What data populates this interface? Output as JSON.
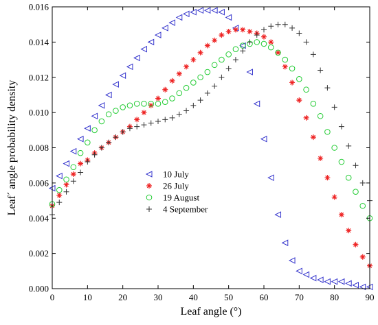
{
  "chart_data": {
    "type": "scatter",
    "title": "",
    "xlabel": "Leaf angle (°)",
    "ylabel": "Leaf´ angle probability density",
    "xlim": [
      0,
      90
    ],
    "ylim": [
      0,
      0.016
    ],
    "x_ticks": [
      "0",
      "10",
      "20",
      "30",
      "40",
      "50",
      "60",
      "70",
      "80",
      "90"
    ],
    "y_ticks": [
      "0.000",
      "0.002",
      "0.004",
      "0.006",
      "0.008",
      "0.010",
      "0.012",
      "0.014",
      "0.016"
    ],
    "x_tick_values": [
      0,
      10,
      20,
      30,
      40,
      50,
      60,
      70,
      80,
      90
    ],
    "y_tick_values": [
      0,
      0.002,
      0.004,
      0.006,
      0.008,
      0.01,
      0.012,
      0.014,
      0.016
    ],
    "grid": false,
    "legend_position": "center-left",
    "series": [
      {
        "name": "10 July",
        "marker": "triangle-left",
        "color": "#3333cc",
        "points": [
          [
            0,
            0.0057
          ],
          [
            2,
            0.0064
          ],
          [
            4,
            0.0071
          ],
          [
            6,
            0.0078
          ],
          [
            8,
            0.0085
          ],
          [
            10,
            0.0091
          ],
          [
            12,
            0.0098
          ],
          [
            14,
            0.0104
          ],
          [
            16,
            0.011
          ],
          [
            18,
            0.0116
          ],
          [
            20,
            0.0121
          ],
          [
            22,
            0.0126
          ],
          [
            24,
            0.0131
          ],
          [
            26,
            0.0136
          ],
          [
            28,
            0.014
          ],
          [
            30,
            0.0144
          ],
          [
            32,
            0.0148
          ],
          [
            34,
            0.0151
          ],
          [
            36,
            0.0154
          ],
          [
            38,
            0.0156
          ],
          [
            40,
            0.0157
          ],
          [
            42,
            0.0158
          ],
          [
            44,
            0.0158
          ],
          [
            46,
            0.0158
          ],
          [
            48,
            0.0157
          ],
          [
            50,
            0.0154
          ],
          [
            52,
            0.0148
          ],
          [
            54,
            0.0138
          ],
          [
            56,
            0.0123
          ],
          [
            58,
            0.0105
          ],
          [
            60,
            0.0085
          ],
          [
            62,
            0.0063
          ],
          [
            64,
            0.0042
          ],
          [
            66,
            0.0026
          ],
          [
            68,
            0.0016
          ],
          [
            70,
            0.001
          ],
          [
            72,
            0.0008
          ],
          [
            74,
            0.0006
          ],
          [
            76,
            0.0005
          ],
          [
            78,
            0.0004
          ],
          [
            80,
            0.0004
          ],
          [
            82,
            0.0004
          ],
          [
            84,
            0.0003
          ],
          [
            86,
            0.0002
          ],
          [
            88,
            0.0001
          ],
          [
            90,
            0.0001
          ]
        ]
      },
      {
        "name": "26 July",
        "marker": "asterisk",
        "color": "#ee2222",
        "points": [
          [
            0,
            0.0047
          ],
          [
            2,
            0.0053
          ],
          [
            4,
            0.0059
          ],
          [
            6,
            0.0065
          ],
          [
            8,
            0.0071
          ],
          [
            10,
            0.0073
          ],
          [
            12,
            0.0077
          ],
          [
            14,
            0.008
          ],
          [
            16,
            0.0083
          ],
          [
            18,
            0.0086
          ],
          [
            20,
            0.0089
          ],
          [
            22,
            0.0092
          ],
          [
            24,
            0.0096
          ],
          [
            26,
            0.01
          ],
          [
            28,
            0.0104
          ],
          [
            30,
            0.0108
          ],
          [
            32,
            0.0113
          ],
          [
            34,
            0.0118
          ],
          [
            36,
            0.0122
          ],
          [
            38,
            0.0126
          ],
          [
            40,
            0.013
          ],
          [
            42,
            0.0134
          ],
          [
            44,
            0.0138
          ],
          [
            46,
            0.0141
          ],
          [
            48,
            0.0144
          ],
          [
            50,
            0.0146
          ],
          [
            52,
            0.0147
          ],
          [
            54,
            0.0147
          ],
          [
            56,
            0.0146
          ],
          [
            58,
            0.0145
          ],
          [
            60,
            0.0143
          ],
          [
            62,
            0.014
          ],
          [
            64,
            0.0134
          ],
          [
            66,
            0.0126
          ],
          [
            68,
            0.0117
          ],
          [
            70,
            0.0107
          ],
          [
            72,
            0.0097
          ],
          [
            74,
            0.0086
          ],
          [
            76,
            0.0074
          ],
          [
            78,
            0.0063
          ],
          [
            80,
            0.0052
          ],
          [
            82,
            0.0042
          ],
          [
            84,
            0.0033
          ],
          [
            86,
            0.0025
          ],
          [
            88,
            0.0018
          ],
          [
            90,
            0.0013
          ]
        ]
      },
      {
        "name": "19 August",
        "marker": "circle",
        "color": "#22cc33",
        "points": [
          [
            0,
            0.0048
          ],
          [
            2,
            0.0056
          ],
          [
            4,
            0.0062
          ],
          [
            6,
            0.0069
          ],
          [
            8,
            0.0077
          ],
          [
            10,
            0.0083
          ],
          [
            12,
            0.009
          ],
          [
            14,
            0.0095
          ],
          [
            16,
            0.0099
          ],
          [
            18,
            0.0101
          ],
          [
            20,
            0.0103
          ],
          [
            22,
            0.0104
          ],
          [
            24,
            0.0105
          ],
          [
            26,
            0.0105
          ],
          [
            28,
            0.0105
          ],
          [
            30,
            0.0105
          ],
          [
            32,
            0.0106
          ],
          [
            34,
            0.0108
          ],
          [
            36,
            0.0111
          ],
          [
            38,
            0.0114
          ],
          [
            40,
            0.0117
          ],
          [
            42,
            0.012
          ],
          [
            44,
            0.0123
          ],
          [
            46,
            0.0127
          ],
          [
            48,
            0.013
          ],
          [
            50,
            0.0133
          ],
          [
            52,
            0.0136
          ],
          [
            54,
            0.0138
          ],
          [
            56,
            0.0139
          ],
          [
            58,
            0.014
          ],
          [
            60,
            0.0139
          ],
          [
            62,
            0.0137
          ],
          [
            64,
            0.0134
          ],
          [
            66,
            0.013
          ],
          [
            68,
            0.0125
          ],
          [
            70,
            0.0119
          ],
          [
            72,
            0.0113
          ],
          [
            74,
            0.0105
          ],
          [
            76,
            0.0098
          ],
          [
            78,
            0.0089
          ],
          [
            80,
            0.008
          ],
          [
            82,
            0.0072
          ],
          [
            84,
            0.0063
          ],
          [
            86,
            0.0055
          ],
          [
            88,
            0.0047
          ],
          [
            90,
            0.004
          ]
        ]
      },
      {
        "name": "4 September",
        "marker": "plus",
        "color": "#333333",
        "points": [
          [
            0,
            0.0042
          ],
          [
            2,
            0.0049
          ],
          [
            4,
            0.0055
          ],
          [
            6,
            0.0061
          ],
          [
            8,
            0.0066
          ],
          [
            10,
            0.0072
          ],
          [
            12,
            0.0076
          ],
          [
            14,
            0.008
          ],
          [
            16,
            0.0083
          ],
          [
            18,
            0.0086
          ],
          [
            20,
            0.0089
          ],
          [
            22,
            0.0091
          ],
          [
            24,
            0.0092
          ],
          [
            26,
            0.0093
          ],
          [
            28,
            0.0094
          ],
          [
            30,
            0.0095
          ],
          [
            32,
            0.0096
          ],
          [
            34,
            0.0097
          ],
          [
            36,
            0.0099
          ],
          [
            38,
            0.0101
          ],
          [
            40,
            0.0104
          ],
          [
            42,
            0.0107
          ],
          [
            44,
            0.0111
          ],
          [
            46,
            0.0115
          ],
          [
            48,
            0.012
          ],
          [
            50,
            0.0125
          ],
          [
            52,
            0.013
          ],
          [
            54,
            0.0135
          ],
          [
            56,
            0.014
          ],
          [
            58,
            0.0144
          ],
          [
            60,
            0.0147
          ],
          [
            62,
            0.0149
          ],
          [
            64,
            0.015
          ],
          [
            66,
            0.015
          ],
          [
            68,
            0.0148
          ],
          [
            70,
            0.0145
          ],
          [
            72,
            0.014
          ],
          [
            74,
            0.0133
          ],
          [
            76,
            0.0124
          ],
          [
            78,
            0.0114
          ],
          [
            80,
            0.0103
          ],
          [
            82,
            0.0092
          ],
          [
            84,
            0.0081
          ],
          [
            86,
            0.007
          ],
          [
            88,
            0.006
          ],
          [
            90,
            0.005
          ]
        ]
      }
    ]
  }
}
